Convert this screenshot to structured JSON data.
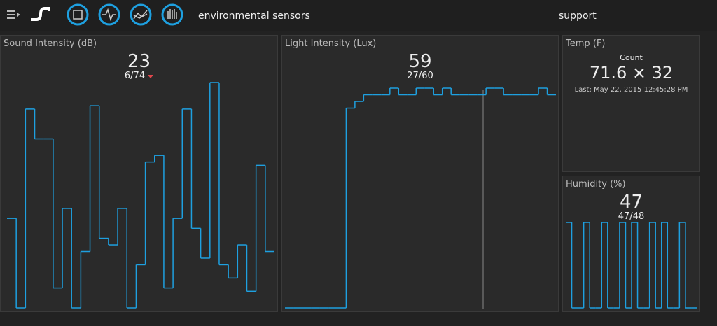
{
  "header": {
    "title": "environmental sensors",
    "link": "support"
  },
  "sound": {
    "title": "Sound Intensity (dB)",
    "value": 23,
    "range": "6/74",
    "sparkline": [
      33,
      6,
      66,
      57,
      57,
      12,
      36,
      6,
      23,
      67,
      27,
      25,
      36,
      6,
      19,
      50,
      52,
      12,
      33,
      66,
      30,
      21,
      74,
      19,
      15,
      25,
      11,
      49,
      23
    ]
  },
  "light": {
    "title": "Light Intensity (Lux)",
    "value": 59,
    "range": "27/60",
    "sparkline": [
      27,
      27,
      27,
      27,
      27,
      27,
      27,
      57,
      58,
      59,
      59,
      59,
      60,
      59,
      59,
      60,
      60,
      59,
      60,
      59,
      59,
      59,
      59,
      60,
      60,
      59,
      59,
      59,
      59,
      60,
      59
    ]
  },
  "temp": {
    "title": "Temp (F)",
    "label": "Count",
    "reading": "71.6 × 32",
    "last": "Last: May 22, 2015 12:45:28 PM"
  },
  "humidity": {
    "title": "Humidity (%)",
    "value": 47,
    "range": "47/48",
    "sparkline": [
      48,
      47,
      47,
      48,
      47,
      47,
      48,
      47,
      47,
      48,
      47,
      48,
      47,
      47,
      48,
      47,
      48,
      47,
      47,
      48,
      47,
      47
    ]
  }
}
